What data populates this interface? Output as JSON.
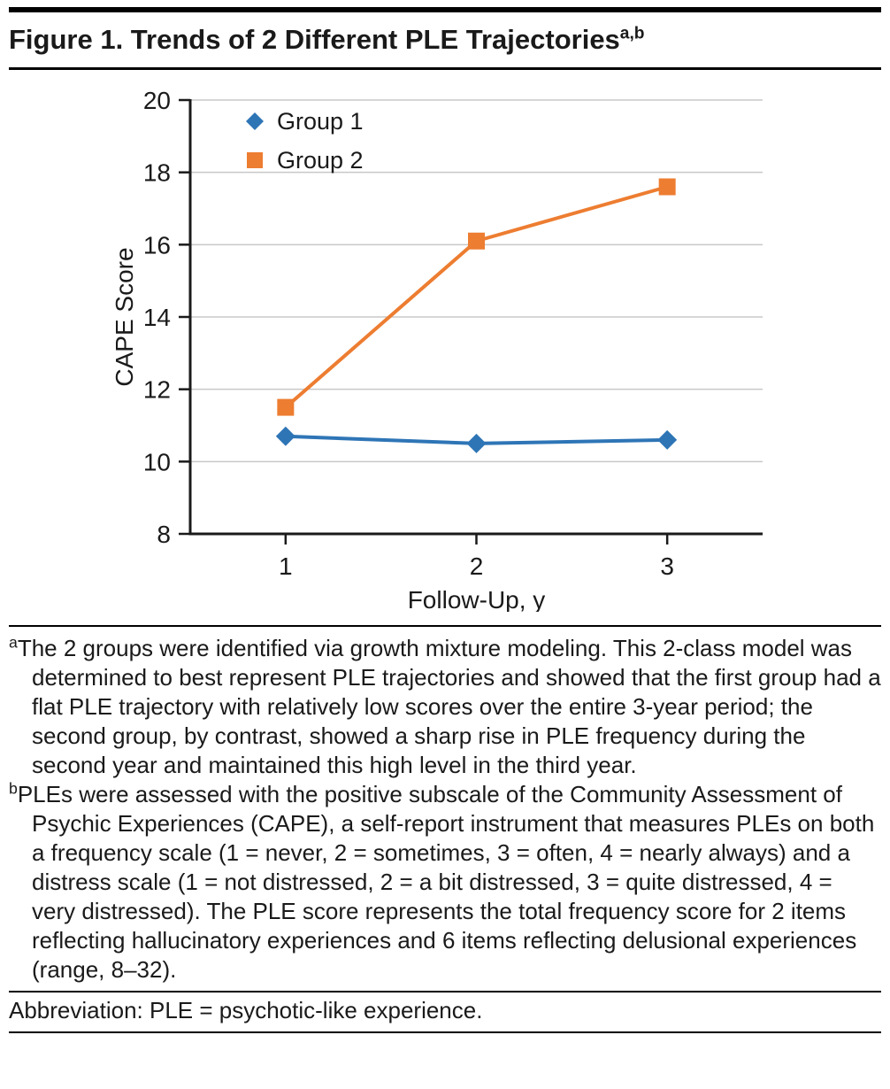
{
  "title": {
    "text": "Figure 1. Trends of 2 Different PLE Trajectories",
    "superscript": "a,b"
  },
  "chart_data": {
    "type": "line",
    "categories": [
      "1",
      "2",
      "3"
    ],
    "series": [
      {
        "name": "Group 1",
        "values": [
          10.7,
          10.5,
          10.6
        ],
        "color": "#2E75B6",
        "marker": "diamond"
      },
      {
        "name": "Group 2",
        "values": [
          11.5,
          16.1,
          17.6
        ],
        "color": "#ED7D31",
        "marker": "square"
      }
    ],
    "xlabel": "Follow-Up, y",
    "ylabel": "CAPE Score",
    "ylim": [
      8,
      20
    ],
    "yticks": [
      8,
      10,
      12,
      14,
      16,
      18,
      20
    ],
    "grid": "horizontal",
    "gridline_color": "#c8c8c8",
    "axis_color": "#1a1a1a",
    "legend_position": "top-left-inside"
  },
  "footnotes": [
    {
      "marker": "a",
      "text": "The 2 groups were identified via growth mixture modeling. This 2-class model was determined to best represent PLE trajectories and showed that the first group had a flat PLE trajectory with relatively low scores over the entire 3-year period; the second group, by contrast, showed a sharp rise in PLE frequency during the second year and maintained this high level in the third year."
    },
    {
      "marker": "b",
      "text": "PLEs were assessed with the positive subscale of the Community Assessment of Psychic Experiences (CAPE), a self-report instrument that measures PLEs on both a frequency scale (1 = never, 2 = sometimes, 3 = often, 4 = nearly always) and a distress scale (1 = not distressed, 2 = a bit distressed, 3 = quite distressed, 4 = very distressed). The PLE score represents the total frequency score for 2 items reflecting hallucinatory experiences and 6 items reflecting delusional experiences (range, 8–32)."
    }
  ],
  "abbreviation": "Abbreviation: PLE = psychotic-like experience."
}
